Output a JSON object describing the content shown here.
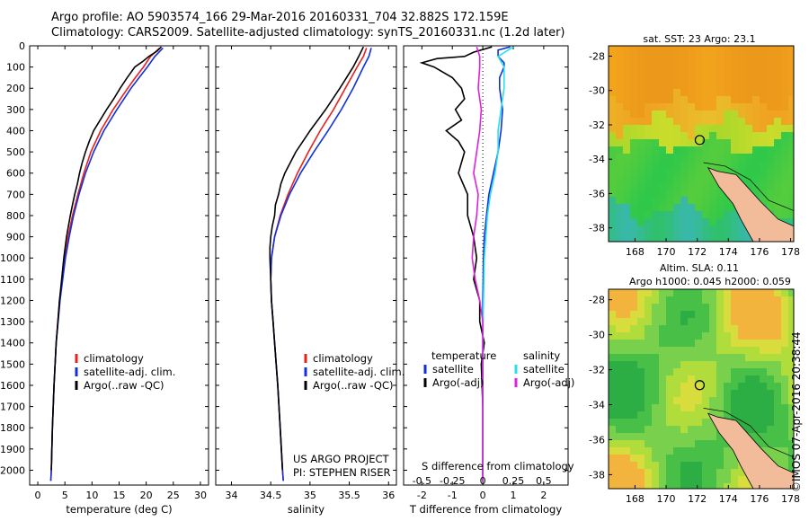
{
  "header": {
    "line1": "Argo profile: AO 5903574_166 29-Mar-2016 20160331_704 32.882S 172.159E",
    "line2": "Climatology: CARS2009. Satellite-adjusted climatology: synTS_20160331.nc (1.2d later)"
  },
  "colors": {
    "climatology": "#e8201c",
    "satellite": "#1030e0",
    "argo": "#000000",
    "sat_salinity": "#28e0e8",
    "argo_salinity": "#e020e0"
  },
  "depth_axis": {
    "ylim": [
      0,
      2070
    ],
    "ticks": [
      0,
      100,
      200,
      300,
      400,
      500,
      600,
      700,
      800,
      900,
      1000,
      1100,
      1200,
      1300,
      1400,
      1500,
      1600,
      1700,
      1800,
      1900,
      2000
    ]
  },
  "chart_data": [
    {
      "type": "line",
      "id": "temperature",
      "xlabel": "temperature (deg C)",
      "xlim": [
        -1.5,
        31.5
      ],
      "xticks": [
        0,
        5,
        10,
        15,
        20,
        25,
        30
      ],
      "legend": [
        "climatology",
        "satellite-adj. clim.",
        "Argo(..raw -QC)"
      ],
      "series": [
        {
          "name": "climatology",
          "color": "#e8201c",
          "depth": [
            10,
            50,
            100,
            150,
            200,
            300,
            400,
            500,
            600,
            700,
            800,
            900,
            1000,
            1200,
            1400,
            1600,
            1800,
            2000,
            2050
          ],
          "values": [
            22.5,
            20.8,
            19.5,
            18.0,
            16.6,
            13.9,
            11.6,
            9.8,
            8.5,
            7.4,
            6.4,
            5.6,
            5.0,
            4.0,
            3.4,
            3.0,
            2.7,
            2.5,
            2.4
          ]
        },
        {
          "name": "satellite-adj. clim.",
          "color": "#1030e0",
          "depth": [
            10,
            50,
            100,
            150,
            200,
            300,
            400,
            500,
            600,
            700,
            800,
            900,
            1000,
            1200,
            1400,
            1600,
            1800,
            2000,
            2050
          ],
          "values": [
            23.1,
            21.6,
            20.2,
            18.7,
            17.2,
            14.6,
            12.2,
            10.3,
            8.8,
            7.6,
            6.6,
            5.8,
            5.1,
            4.1,
            3.4,
            3.0,
            2.7,
            2.5,
            2.4
          ]
        },
        {
          "name": "Argo(..raw -QC)",
          "color": "#000000",
          "depth": [
            5,
            25,
            50,
            75,
            100,
            150,
            200,
            250,
            300,
            350,
            400,
            450,
            500,
            550,
            600,
            650,
            700,
            750,
            800,
            900,
            1000,
            1100,
            1200,
            1300,
            1400,
            1600,
            1800,
            2000
          ],
          "values": [
            22.8,
            22.0,
            20.5,
            19.3,
            17.9,
            16.5,
            15.2,
            14.0,
            12.7,
            11.5,
            10.3,
            9.5,
            8.8,
            8.2,
            7.7,
            7.3,
            6.8,
            6.4,
            6.0,
            5.3,
            4.8,
            4.4,
            4.0,
            3.7,
            3.4,
            3.0,
            2.7,
            2.5
          ]
        }
      ]
    },
    {
      "type": "line",
      "id": "salinity",
      "xlabel": "salinity",
      "xlim": [
        33.8,
        36.1
      ],
      "xticks": [
        34,
        34.5,
        35,
        35.5,
        36
      ],
      "legend": [
        "climatology",
        "satellite-adj. clim.",
        "Argo(..raw -QC)"
      ],
      "annotations": [
        "US ARGO PROJECT",
        "PI: STEPHEN RISER"
      ],
      "series": [
        {
          "name": "climatology",
          "color": "#e8201c",
          "depth": [
            10,
            50,
            100,
            200,
            300,
            400,
            500,
            600,
            700,
            800,
            900,
            1000,
            1100,
            1200,
            1300,
            1400,
            1600,
            1800,
            2000,
            2050
          ],
          "values": [
            35.72,
            35.68,
            35.6,
            35.45,
            35.3,
            35.13,
            34.98,
            34.84,
            34.72,
            34.62,
            34.55,
            34.51,
            34.5,
            34.51,
            34.53,
            34.55,
            34.59,
            34.62,
            34.65,
            34.66
          ]
        },
        {
          "name": "satellite-adj. clim.",
          "color": "#1030e0",
          "depth": [
            10,
            50,
            100,
            200,
            300,
            400,
            500,
            600,
            700,
            800,
            900,
            1000,
            1100,
            1200,
            1300,
            1400,
            1600,
            1800,
            2000,
            2050
          ],
          "values": [
            35.78,
            35.75,
            35.68,
            35.55,
            35.4,
            35.23,
            35.05,
            34.88,
            34.74,
            34.63,
            34.55,
            34.51,
            34.5,
            34.51,
            34.53,
            34.55,
            34.59,
            34.62,
            34.65,
            34.66
          ]
        },
        {
          "name": "Argo(..raw -QC)",
          "color": "#000000",
          "depth": [
            5,
            50,
            100,
            200,
            300,
            400,
            500,
            600,
            650,
            700,
            750,
            800,
            850,
            900,
            950,
            1000,
            1100,
            1200,
            1300,
            1400,
            1600,
            1800,
            2000
          ],
          "values": [
            35.68,
            35.62,
            35.55,
            35.38,
            35.2,
            35.0,
            34.82,
            34.68,
            34.63,
            34.6,
            34.56,
            34.55,
            34.52,
            34.5,
            34.49,
            34.49,
            34.5,
            34.51,
            34.53,
            34.55,
            34.59,
            34.62,
            34.65
          ]
        }
      ]
    },
    {
      "type": "line",
      "id": "difference",
      "xlabel": "T difference from climatology",
      "xlabel_top": "S difference from climatology",
      "xlim": [
        -2.6,
        2.8
      ],
      "xticks": [
        -2,
        -1,
        0,
        1,
        2
      ],
      "top_ticks": [
        -0.5,
        -0.25,
        0,
        0.25,
        0.5
      ],
      "top_ticks_labels": [
        "-0.5",
        "-0.25",
        "0",
        "0.25",
        "0.5"
      ],
      "legend_t": {
        "title": "temperature",
        "entries": [
          "satellite",
          "Argo(-adj)"
        ]
      },
      "legend_s": {
        "title": "salinity",
        "entries": [
          "satellite",
          "Argo(-adj)"
        ]
      },
      "series": [
        {
          "name": "T satellite",
          "color": "#1030e0",
          "depth": [
            5,
            20,
            50,
            80,
            100,
            150,
            200,
            300,
            400,
            500,
            600,
            700,
            800,
            900,
            1000,
            1100,
            1200,
            1300,
            1500,
            1700,
            1900,
            2050
          ],
          "values": [
            0.9,
            0.5,
            0.5,
            0.7,
            0.7,
            0.55,
            0.55,
            0.65,
            0.6,
            0.5,
            0.35,
            0.2,
            0.12,
            0.05,
            0.02,
            0.01,
            0,
            0,
            0,
            0,
            0,
            0
          ]
        },
        {
          "name": "T Argo(-adj)",
          "color": "#000000",
          "depth": [
            5,
            30,
            50,
            60,
            80,
            100,
            150,
            200,
            250,
            300,
            350,
            400,
            450,
            500,
            600,
            700,
            800,
            900,
            1000,
            1100,
            1200,
            1300,
            1400,
            1500,
            1700,
            1900,
            2050
          ],
          "values": [
            0.3,
            -0.3,
            -0.6,
            -1.5,
            -2.0,
            -1.6,
            -1.0,
            -0.7,
            -0.6,
            -0.9,
            -0.7,
            -1.2,
            -0.8,
            -0.6,
            -0.8,
            -0.5,
            -0.5,
            -0.3,
            -0.2,
            -0.3,
            -0.1,
            -0.1,
            0.05,
            -0.05,
            0,
            0,
            0
          ]
        },
        {
          "name": "S satellite",
          "color": "#28e0e8",
          "depth": [
            5,
            50,
            100,
            200,
            300,
            400,
            500,
            600,
            700,
            800,
            900,
            1000,
            1200,
            1400,
            1600,
            1800,
            2050
          ],
          "values": [
            1.0,
            0.5,
            0.7,
            0.7,
            0.6,
            0.5,
            0.5,
            0.4,
            0.25,
            0.15,
            0.1,
            0.05,
            0.02,
            0,
            0,
            0,
            0
          ]
        },
        {
          "name": "S Argo(-adj)",
          "color": "#e020e0",
          "depth": [
            5,
            50,
            100,
            200,
            300,
            400,
            500,
            600,
            700,
            800,
            900,
            1000,
            1100,
            1200,
            1300,
            1400,
            1500,
            1700,
            1900,
            2050
          ],
          "values": [
            -0.2,
            -0.1,
            -0.1,
            -0.15,
            -0.05,
            -0.1,
            -0.2,
            -0.3,
            -0.15,
            -0.2,
            -0.3,
            -0.35,
            -0.25,
            -0.1,
            0,
            0,
            0,
            0,
            0,
            0
          ]
        }
      ]
    },
    {
      "type": "heatmap",
      "id": "sst-map",
      "title": "sat. SST: 23 Argo: 23.1",
      "xlim": [
        166.3,
        178.2
      ],
      "ylim": [
        -38.8,
        -27.4
      ],
      "xticks": [
        168,
        170,
        172,
        174,
        176,
        178
      ],
      "yticks": [
        -28,
        -30,
        -32,
        -34,
        -36,
        -38
      ],
      "marker": {
        "lon": 172.159,
        "lat": -32.882
      }
    },
    {
      "type": "heatmap",
      "id": "sla-map",
      "title": "Altim. SLA: 0.11",
      "subtitle": "Argo h1000: 0.045 h2000: 0.059",
      "xlim": [
        166.3,
        178.2
      ],
      "ylim": [
        -38.8,
        -27.4
      ],
      "xticks": [
        168,
        170,
        172,
        174,
        176,
        178
      ],
      "yticks": [
        -28,
        -30,
        -32,
        -34,
        -36,
        -38
      ],
      "marker": {
        "lon": 172.159,
        "lat": -32.882
      }
    }
  ],
  "credit": "©IMOS 07-Apr-2016 20:38:44"
}
